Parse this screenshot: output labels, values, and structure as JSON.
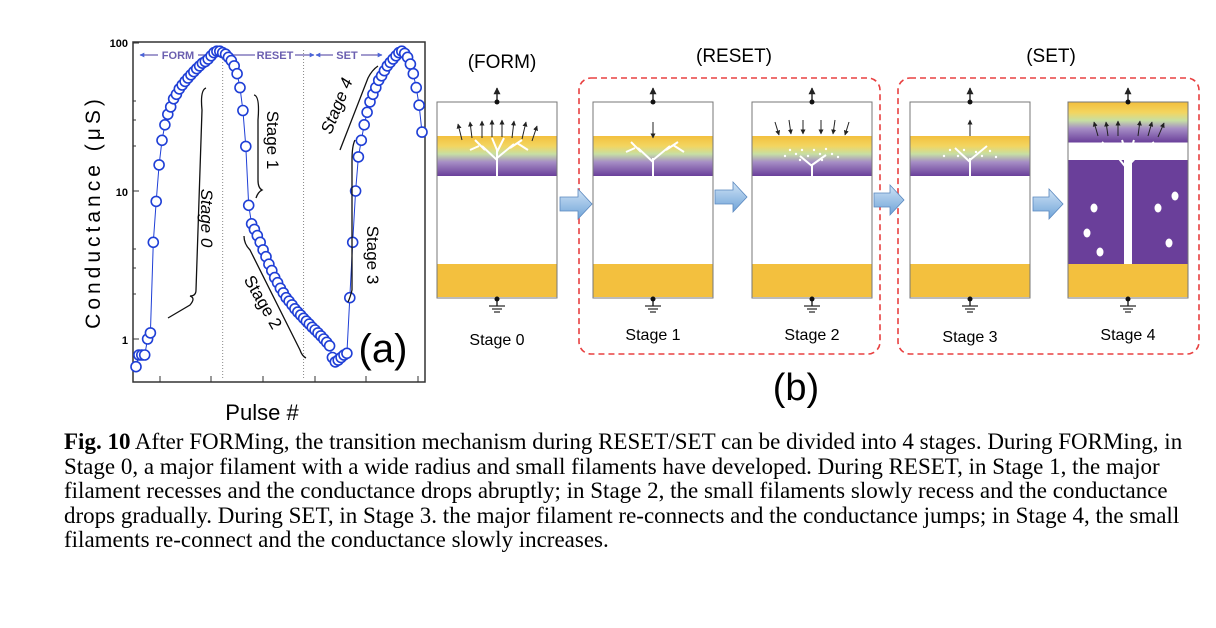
{
  "chart_data": {
    "type": "scatter",
    "panel_label": "(a)",
    "xlabel": "Pulse #",
    "ylabel": "Conductance (μS)",
    "yscale": "log",
    "ylim": [
      0.6,
      100
    ],
    "y_ticks": [
      "100",
      "10",
      "1"
    ],
    "phase_labels": [
      "FORM",
      "RESET",
      "SET"
    ],
    "stage_labels": [
      "Stage 0",
      "Stage 1",
      "Stage 2",
      "Stage 3",
      "Stage 4"
    ],
    "x": [
      1,
      2,
      3,
      4,
      5,
      6,
      7,
      8,
      9,
      10,
      11,
      12,
      13,
      14,
      15,
      16,
      17,
      18,
      19,
      20,
      21,
      22,
      23,
      24,
      25,
      26,
      27,
      28,
      29,
      30,
      31,
      32,
      33,
      34,
      35,
      36,
      37,
      38,
      39,
      40,
      41,
      42,
      43,
      44,
      45,
      46,
      47,
      48,
      49,
      50,
      51,
      52,
      53,
      54,
      55,
      56,
      57,
      58,
      59,
      60,
      61,
      62,
      63,
      64,
      65,
      66,
      67,
      68,
      69,
      70,
      71,
      72,
      73,
      74,
      75,
      76,
      77,
      78,
      79,
      80,
      81,
      82,
      83,
      84,
      85,
      86,
      87,
      88,
      89,
      90,
      91,
      92,
      93,
      94,
      95,
      96,
      97,
      98,
      99,
      100
    ],
    "y": [
      0.65,
      0.78,
      0.78,
      0.78,
      1.0,
      1.1,
      4.5,
      8.5,
      15,
      22,
      28,
      33,
      37,
      42,
      45,
      49,
      52,
      55,
      58,
      61,
      64,
      67,
      70,
      73,
      75,
      78,
      82,
      86,
      88,
      88,
      86,
      84,
      80,
      76,
      70,
      62,
      50,
      35,
      20,
      8,
      6,
      5.5,
      5,
      4.5,
      4,
      3.6,
      3.2,
      2.9,
      2.6,
      2.4,
      2.2,
      2.05,
      1.9,
      1.8,
      1.7,
      1.6,
      1.52,
      1.45,
      1.38,
      1.32,
      1.26,
      1.2,
      1.15,
      1.1,
      1.05,
      1.0,
      0.95,
      0.9,
      0.75,
      0.7,
      0.72,
      0.75,
      0.78,
      0.8,
      1.9,
      4.5,
      10,
      17,
      22,
      28,
      34,
      40,
      45,
      50,
      56,
      60,
      65,
      70,
      74,
      78,
      82,
      86,
      88,
      85,
      80,
      72,
      62,
      50,
      38,
      25
    ],
    "vlines": [
      31,
      59
    ]
  },
  "panel_b": {
    "panel_label": "(b)",
    "headers": [
      "(FORM)",
      "(RESET)",
      "(SET)"
    ],
    "stages": [
      "Stage 0",
      "Stage 1",
      "Stage 2",
      "Stage 3",
      "Stage 4"
    ]
  },
  "caption": {
    "label": "Fig. 10",
    "text": " After FORMing, the transition mechanism during RESET/SET can be divided into 4 stages. During FORMing, in Stage 0, a major filament with a wide radius and small filaments have developed. During RESET, in Stage 1, the major filament recesses and the conductance drops abruptly; in Stage 2, the small filaments slowly recess and the conductance drops gradually. During SET, in Stage 3. the major filament re-connects and the conductance jumps; in Stage 4, the small filaments re-connect and the conductance slowly increases."
  },
  "colors": {
    "marker": "#1f3fd6",
    "gold": "#f3c03e",
    "purple": "#6a3f9a",
    "dashed": "#e84040",
    "arrow": "#7fb0e0"
  }
}
